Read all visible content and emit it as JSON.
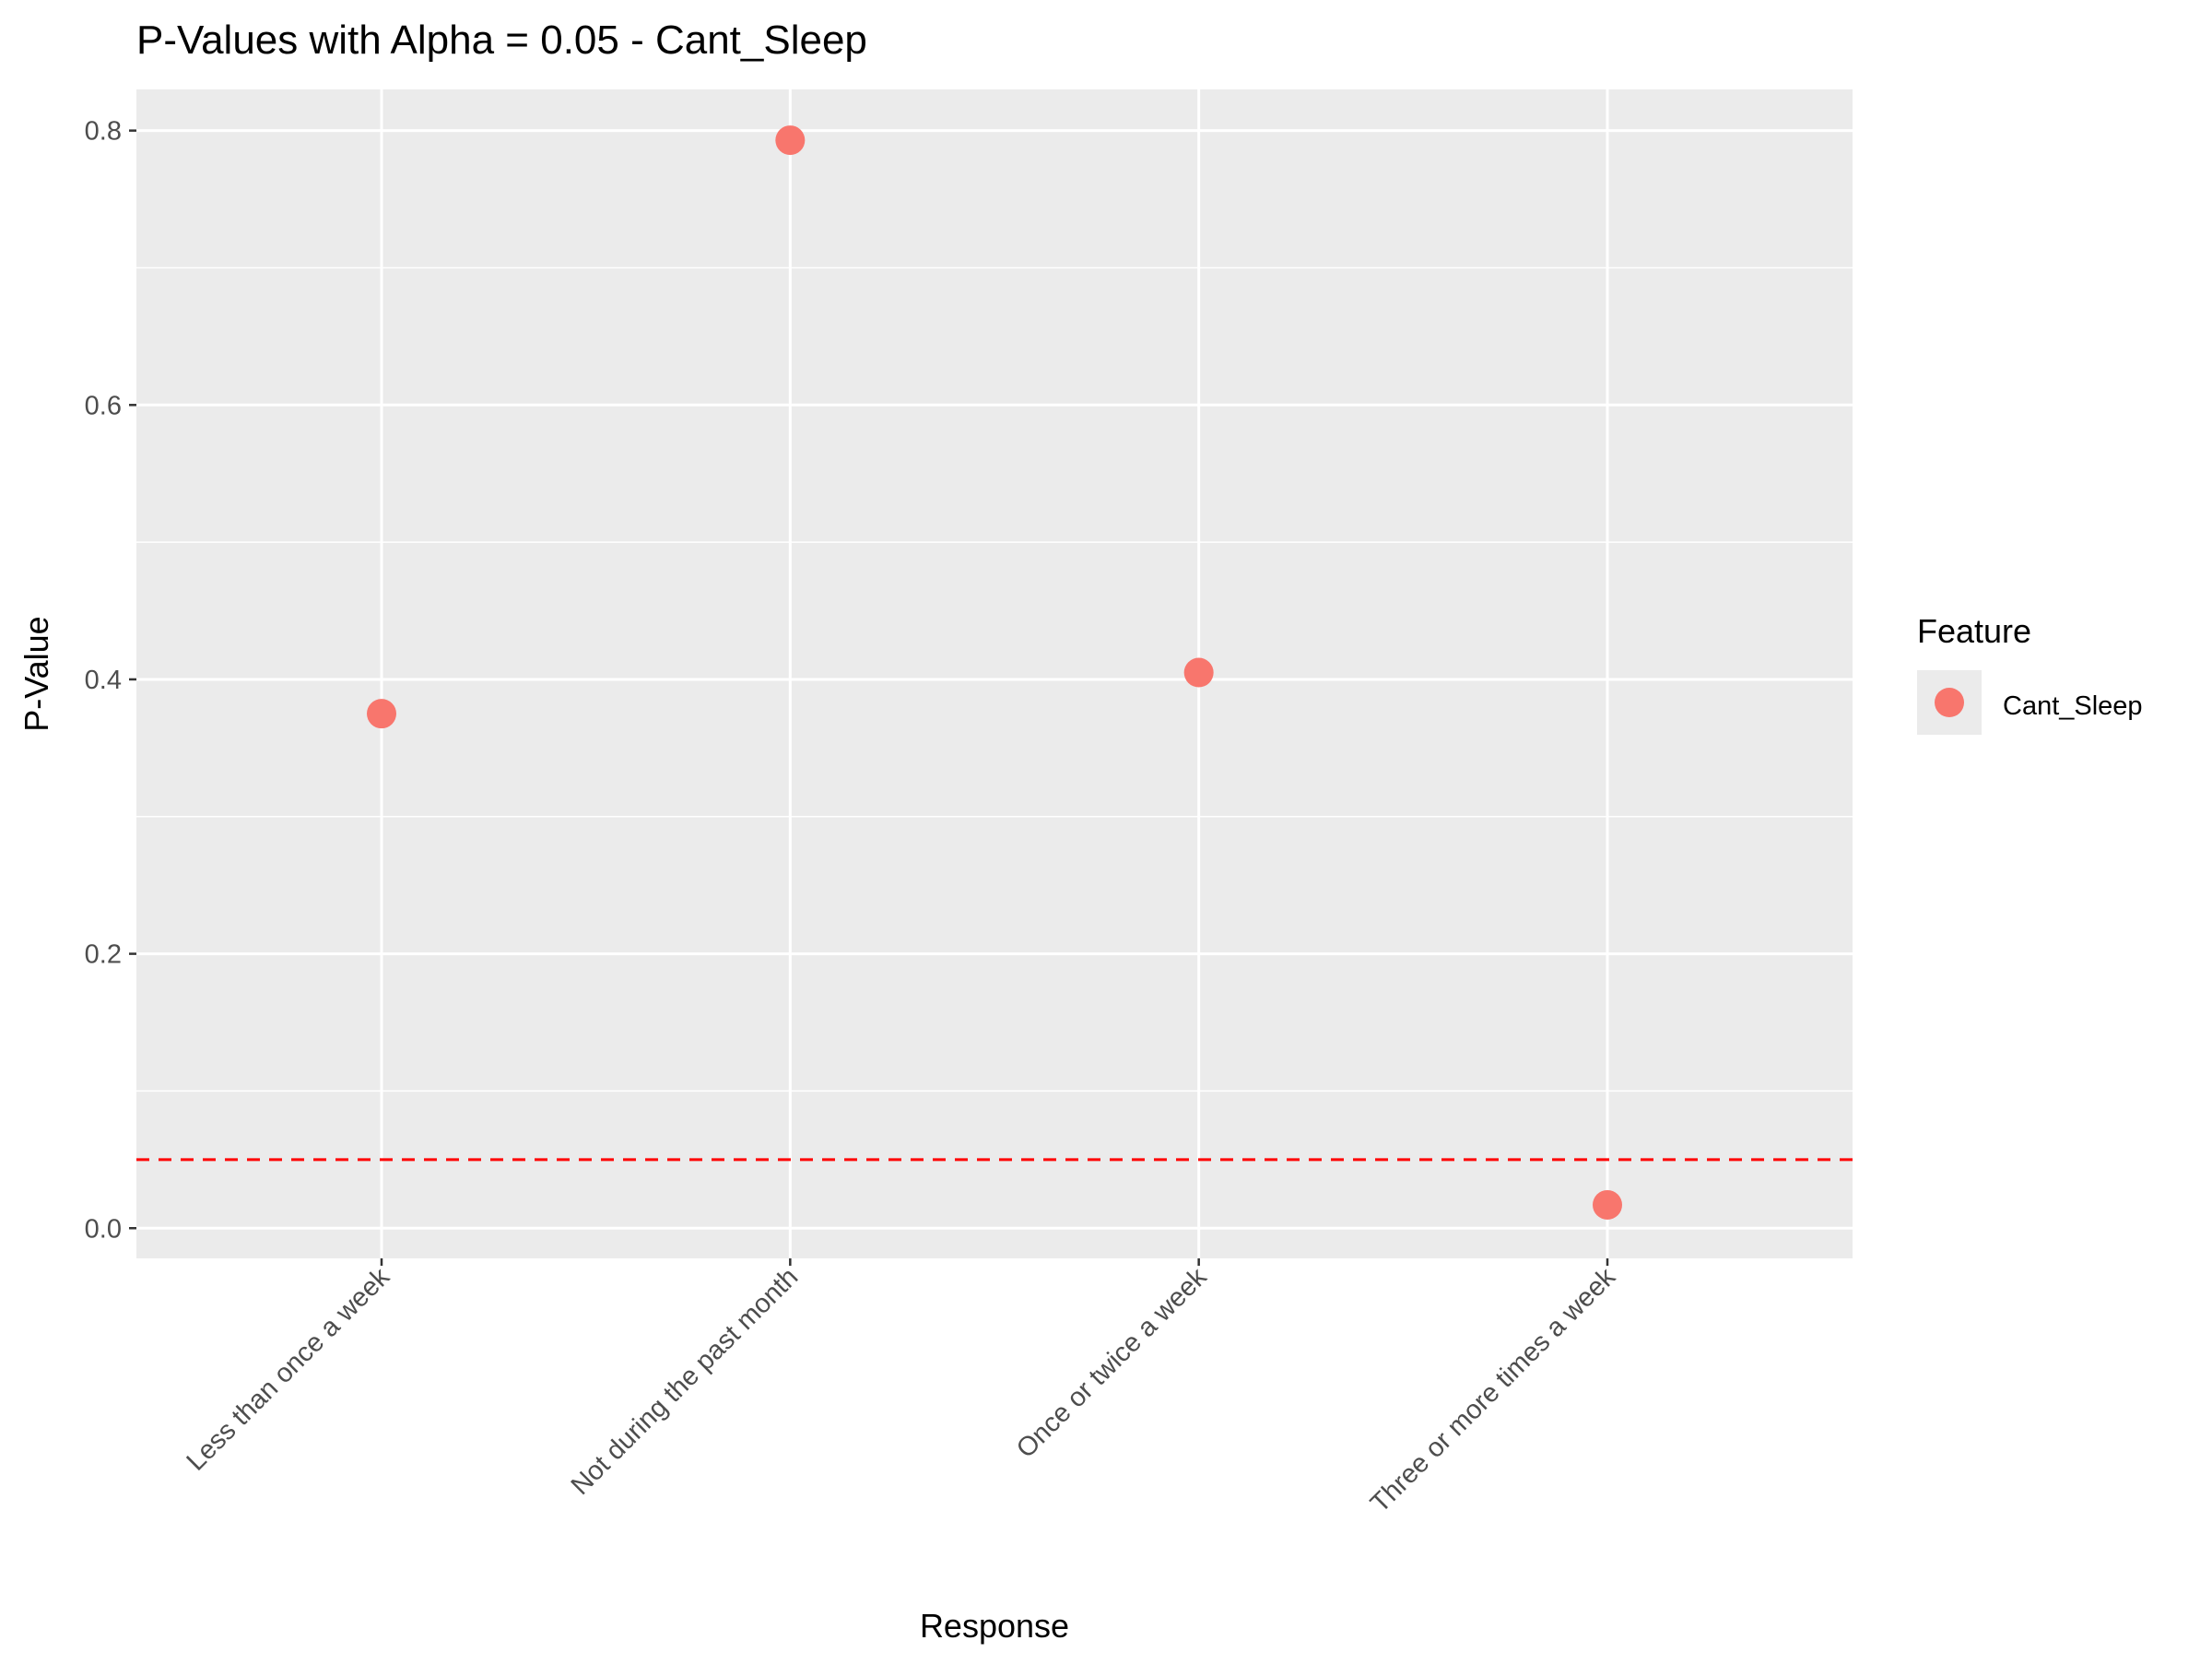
{
  "chart_data": {
    "type": "scatter",
    "title": "P-Values with Alpha = 0.05 - Cant_Sleep",
    "xlabel": "Response",
    "ylabel": "P-Value",
    "categories": [
      "Less than once a week",
      "Not during the past month",
      "Once or twice a week",
      "Three or more times a week"
    ],
    "series": [
      {
        "name": "Cant_Sleep",
        "values": [
          0.375,
          0.793,
          0.405,
          0.017
        ],
        "color": "#F8766D"
      }
    ],
    "ylim": [
      -0.022,
      0.83
    ],
    "yticks": [
      0.0,
      0.2,
      0.4,
      0.6,
      0.8
    ],
    "ytick_labels": [
      "0.0",
      "0.2",
      "0.4",
      "0.6",
      "0.8"
    ],
    "reference_line": {
      "y": 0.05,
      "style": "dashed",
      "color": "#FF0000"
    },
    "legend": {
      "title": "Feature",
      "entries": [
        "Cant_Sleep"
      ],
      "position": "right"
    },
    "grid": true,
    "colors": {
      "panel": "#EBEBEB",
      "grid": "#FFFFFF",
      "text": "#000000",
      "tick_text": "#4D4D4D"
    }
  }
}
